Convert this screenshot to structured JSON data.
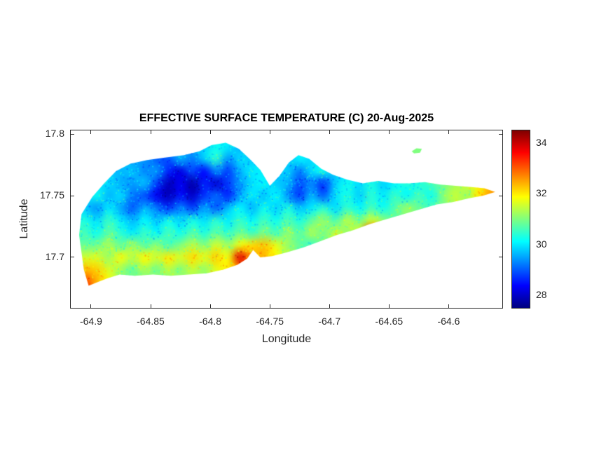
{
  "figure": {
    "background": "#FFFFFF",
    "axis_color": "#262626",
    "title_color": "#000000"
  },
  "chart_data": {
    "type": "heatmap",
    "title": "EFFECTIVE SURFACE TEMPERATURE (C) 20-Aug-2025",
    "xlabel": "Longitude",
    "ylabel": "Latitude",
    "xlim": [
      -64.917,
      -64.555
    ],
    "ylim": [
      17.659,
      17.803
    ],
    "grid_on": false,
    "legend": "colorbar-right",
    "x_ticks": [
      -64.9,
      -64.85,
      -64.8,
      -64.75,
      -64.7,
      -64.65,
      -64.6
    ],
    "x_tick_labels": [
      "-64.9",
      "-64.85",
      "-64.8",
      "-64.75",
      "-64.7",
      "-64.65",
      "-64.6"
    ],
    "y_ticks": [
      17.8,
      17.75,
      17.7
    ],
    "y_tick_labels": [
      "17.8",
      "17.75",
      "17.7"
    ],
    "colorbar": {
      "range": [
        27.5,
        34.5
      ],
      "ticks": [
        28,
        30,
        32,
        34
      ],
      "tick_labels": [
        "28",
        "30",
        "32",
        "34"
      ]
    },
    "colormap": {
      "name": "jet",
      "stops": [
        {
          "pos": 0.0,
          "color": "#00007F"
        },
        {
          "pos": 0.125,
          "color": "#0000FF"
        },
        {
          "pos": 0.375,
          "color": "#00FFFF"
        },
        {
          "pos": 0.5,
          "color": "#7FFF7F"
        },
        {
          "pos": 0.625,
          "color": "#FFFF00"
        },
        {
          "pos": 0.875,
          "color": "#FF0000"
        },
        {
          "pos": 1.0,
          "color": "#7F0000"
        }
      ]
    },
    "grid": {
      "lon_start": -64.905,
      "lon_step": 0.01,
      "lat_start": 17.79,
      "lat_step": -0.01,
      "values": [
        [
          null,
          null,
          null,
          null,
          null,
          null,
          null,
          null,
          null,
          null,
          29.8,
          30.2,
          30.0,
          29.6,
          null,
          null,
          null,
          null,
          null,
          null,
          null,
          null,
          null,
          null,
          null,
          null,
          null,
          null,
          null,
          null,
          null,
          null,
          null,
          null,
          null
        ],
        [
          null,
          null,
          null,
          null,
          null,
          null,
          null,
          null,
          29.6,
          29.2,
          29.8,
          30.4,
          29.4,
          29.9,
          null,
          null,
          null,
          29.7,
          30.1,
          null,
          null,
          null,
          null,
          null,
          null,
          null,
          null,
          null,
          31.0,
          null,
          null,
          null,
          null,
          null,
          null
        ],
        [
          null,
          null,
          null,
          null,
          null,
          null,
          29.4,
          28.6,
          28.2,
          28.9,
          28.4,
          29.3,
          28.8,
          29.6,
          30.0,
          null,
          null,
          29.8,
          29.2,
          29.9,
          30.2,
          null,
          null,
          null,
          null,
          null,
          null,
          null,
          null,
          null,
          null,
          null,
          null,
          null,
          null
        ],
        [
          null,
          null,
          null,
          null,
          null,
          29.7,
          28.8,
          27.9,
          28.3,
          27.8,
          28.6,
          28.1,
          28.8,
          29.4,
          29.9,
          30.1,
          null,
          29.6,
          28.9,
          29.3,
          28.7,
          29.8,
          30.2,
          29.9,
          30.3,
          29.8,
          null,
          null,
          null,
          null,
          null,
          null,
          null,
          null,
          null
        ],
        [
          null,
          30.2,
          29.6,
          29.9,
          29.2,
          28.9,
          28.3,
          27.9,
          28.5,
          28.0,
          28.7,
          29.1,
          28.6,
          29.5,
          30.0,
          29.7,
          30.1,
          29.4,
          28.8,
          29.6,
          29.0,
          29.9,
          30.3,
          29.8,
          30.4,
          30.0,
          30.5,
          30.1,
          30.6,
          30.2,
          31.0,
          31.5,
          31.2,
          32.0,
          32.6
        ],
        [
          29.8,
          29.4,
          30.0,
          29.5,
          29.0,
          29.6,
          29.2,
          28.7,
          29.3,
          28.8,
          29.5,
          29.0,
          29.7,
          30.1,
          29.6,
          30.2,
          29.8,
          30.3,
          29.7,
          30.0,
          30.4,
          29.9,
          30.5,
          30.1,
          30.6,
          30.2,
          30.7,
          31.2,
          30.8,
          null,
          null,
          null,
          null,
          null,
          null
        ],
        [
          30.3,
          29.9,
          30.5,
          30.0,
          29.6,
          30.1,
          29.7,
          30.2,
          29.8,
          30.3,
          29.9,
          30.4,
          30.0,
          30.5,
          30.1,
          30.6,
          30.2,
          30.7,
          30.3,
          30.8,
          31.2,
          30.6,
          31.4,
          30.9,
          31.6,
          31.1,
          null,
          null,
          null,
          null,
          null,
          null,
          null,
          null,
          null
        ],
        [
          30.6,
          30.2,
          30.8,
          30.4,
          30.0,
          30.5,
          30.1,
          30.6,
          30.2,
          30.7,
          30.3,
          30.8,
          30.4,
          30.9,
          30.5,
          31.0,
          30.6,
          31.1,
          30.7,
          31.3,
          30.9,
          31.5,
          31.1,
          31.7,
          33.8,
          null,
          null,
          null,
          null,
          null,
          null,
          null,
          null,
          null,
          null
        ],
        [
          null,
          30.9,
          31.3,
          30.8,
          31.2,
          30.7,
          31.1,
          30.6,
          31.0,
          31.4,
          31.0,
          31.6,
          31.2,
          31.8,
          32.1,
          32.3,
          31.7,
          31.2,
          30.8,
          30.5,
          null,
          null,
          null,
          null,
          null,
          null,
          null,
          null,
          null,
          null,
          null,
          null,
          null,
          null,
          null
        ],
        [
          null,
          31.6,
          31.2,
          31.8,
          31.4,
          31.9,
          31.5,
          32.0,
          31.6,
          32.1,
          31.7,
          32.2,
          31.8,
          33.8,
          null,
          32.4,
          null,
          null,
          null,
          null,
          null,
          null,
          null,
          null,
          null,
          null,
          null,
          null,
          null,
          null,
          null,
          null,
          null,
          null,
          null
        ],
        [
          null,
          32.2,
          31.6,
          31.2,
          30.8,
          31.3,
          30.9,
          31.4,
          31.0,
          31.5,
          31.1,
          31.7,
          32.0,
          null,
          null,
          null,
          null,
          null,
          null,
          null,
          null,
          null,
          null,
          null,
          null,
          null,
          null,
          null,
          null,
          null,
          null,
          null,
          null,
          null,
          null
        ],
        [
          33.2,
          32.4,
          null,
          null,
          null,
          null,
          null,
          null,
          null,
          null,
          null,
          null,
          null,
          null,
          null,
          null,
          null,
          null,
          null,
          null,
          null,
          null,
          null,
          null,
          null,
          null,
          null,
          null,
          null,
          null,
          null,
          null,
          null,
          null,
          null
        ]
      ]
    },
    "island_outline": [
      [
        -64.902,
        17.677
      ],
      [
        -64.906,
        17.69
      ],
      [
        -64.91,
        17.718
      ],
      [
        -64.908,
        17.735
      ],
      [
        -64.899,
        17.749
      ],
      [
        -64.889,
        17.76
      ],
      [
        -64.879,
        17.77
      ],
      [
        -64.867,
        17.776
      ],
      [
        -64.853,
        17.779
      ],
      [
        -64.838,
        17.781
      ],
      [
        -64.822,
        17.783
      ],
      [
        -64.809,
        17.786
      ],
      [
        -64.799,
        17.791
      ],
      [
        -64.787,
        17.793
      ],
      [
        -64.776,
        17.788
      ],
      [
        -64.767,
        17.78
      ],
      [
        -64.758,
        17.771
      ],
      [
        -64.75,
        17.758
      ],
      [
        -64.742,
        17.766
      ],
      [
        -64.734,
        17.777
      ],
      [
        -64.726,
        17.783
      ],
      [
        -64.717,
        17.78
      ],
      [
        -64.707,
        17.772
      ],
      [
        -64.697,
        17.767
      ],
      [
        -64.685,
        17.763
      ],
      [
        -64.672,
        17.76
      ],
      [
        -64.659,
        17.762
      ],
      [
        -64.646,
        17.76
      ],
      [
        -64.633,
        17.76
      ],
      [
        -64.62,
        17.761
      ],
      [
        -64.607,
        17.759
      ],
      [
        -64.594,
        17.758
      ],
      [
        -64.581,
        17.757
      ],
      [
        -64.57,
        17.756
      ],
      [
        -64.561,
        17.753
      ],
      [
        -64.571,
        17.75
      ],
      [
        -64.583,
        17.748
      ],
      [
        -64.596,
        17.745
      ],
      [
        -64.61,
        17.743
      ],
      [
        -64.624,
        17.739
      ],
      [
        -64.638,
        17.735
      ],
      [
        -64.652,
        17.731
      ],
      [
        -64.666,
        17.727
      ],
      [
        -64.68,
        17.722
      ],
      [
        -64.694,
        17.718
      ],
      [
        -64.708,
        17.713
      ],
      [
        -64.722,
        17.708
      ],
      [
        -64.736,
        17.704
      ],
      [
        -64.748,
        17.701
      ],
      [
        -64.758,
        17.7
      ],
      [
        -64.764,
        17.706
      ],
      [
        -64.769,
        17.699
      ],
      [
        -64.777,
        17.694
      ],
      [
        -64.789,
        17.69
      ],
      [
        -64.803,
        17.687
      ],
      [
        -64.818,
        17.686
      ],
      [
        -64.833,
        17.685
      ],
      [
        -64.848,
        17.686
      ],
      [
        -64.863,
        17.685
      ],
      [
        -64.876,
        17.686
      ],
      [
        -64.886,
        17.683
      ],
      [
        -64.894,
        17.68
      ]
    ],
    "buck_island_outline": [
      [
        -64.631,
        17.786
      ],
      [
        -64.627,
        17.7885
      ],
      [
        -64.6225,
        17.788
      ],
      [
        -64.624,
        17.785
      ],
      [
        -64.629,
        17.7843
      ]
    ]
  }
}
